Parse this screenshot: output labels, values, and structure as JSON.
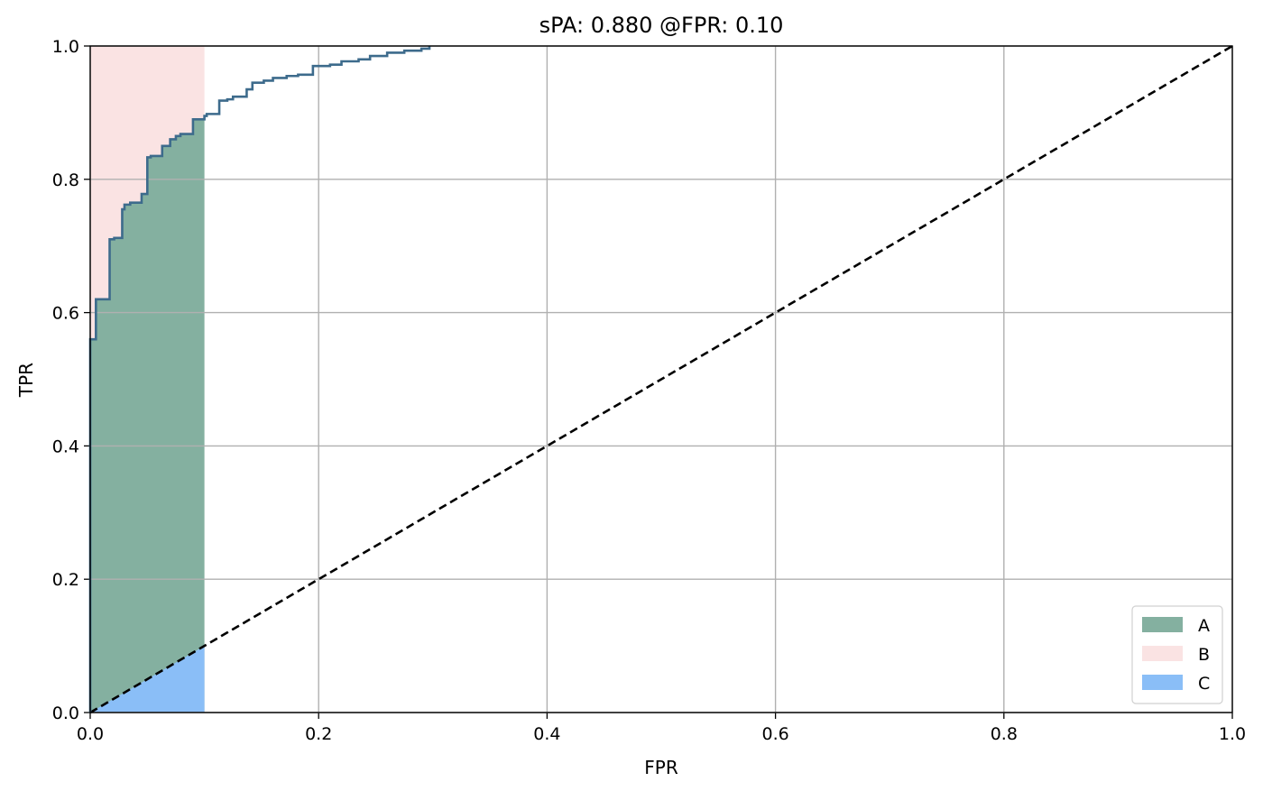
{
  "chart_data": {
    "type": "line",
    "title": "sPA: 0.880 @FPR: 0.10",
    "xlabel": "FPR",
    "ylabel": "TPR",
    "xlim": [
      0.0,
      1.0
    ],
    "ylim": [
      0.0,
      1.0
    ],
    "xticks": [
      "0.0",
      "0.2",
      "0.4",
      "0.6",
      "0.8",
      "1.0"
    ],
    "yticks": [
      "0.0",
      "0.2",
      "0.4",
      "0.6",
      "0.8",
      "1.0"
    ],
    "grid": true,
    "legend_position": "lower-right",
    "roc_curve": {
      "color": "#3d6b8c",
      "x": [
        0.0,
        0.0,
        0.005,
        0.005,
        0.017,
        0.017,
        0.021,
        0.021,
        0.028,
        0.028,
        0.03,
        0.03,
        0.035,
        0.035,
        0.045,
        0.045,
        0.05,
        0.05,
        0.053,
        0.053,
        0.063,
        0.063,
        0.07,
        0.07,
        0.075,
        0.075,
        0.079,
        0.079,
        0.09,
        0.09,
        0.1,
        0.1,
        0.102,
        0.102,
        0.113,
        0.113,
        0.12,
        0.12,
        0.125,
        0.125,
        0.137,
        0.137,
        0.142,
        0.142,
        0.152,
        0.152,
        0.16,
        0.16,
        0.172,
        0.172,
        0.182,
        0.182,
        0.195,
        0.195,
        0.21,
        0.21,
        0.22,
        0.22,
        0.235,
        0.235,
        0.245,
        0.245,
        0.26,
        0.26,
        0.275,
        0.275,
        0.29,
        0.29,
        0.297,
        0.297
      ],
      "y": [
        0.0,
        0.56,
        0.56,
        0.62,
        0.62,
        0.71,
        0.71,
        0.712,
        0.712,
        0.755,
        0.755,
        0.762,
        0.762,
        0.765,
        0.765,
        0.778,
        0.778,
        0.833,
        0.833,
        0.835,
        0.835,
        0.85,
        0.85,
        0.86,
        0.86,
        0.865,
        0.865,
        0.868,
        0.868,
        0.89,
        0.89,
        0.895,
        0.895,
        0.898,
        0.898,
        0.918,
        0.918,
        0.92,
        0.92,
        0.924,
        0.924,
        0.935,
        0.935,
        0.945,
        0.945,
        0.948,
        0.948,
        0.952,
        0.952,
        0.955,
        0.955,
        0.957,
        0.957,
        0.97,
        0.97,
        0.972,
        0.972,
        0.977,
        0.977,
        0.98,
        0.98,
        0.985,
        0.985,
        0.99,
        0.99,
        0.993,
        0.993,
        0.996,
        0.996,
        1.0
      ]
    },
    "diagonal": {
      "x": [
        0.0,
        1.0
      ],
      "y": [
        0.0,
        1.0
      ],
      "style": "dashed",
      "color": "#000000"
    },
    "regions": [
      {
        "name": "A",
        "color": "#84b0a0"
      },
      {
        "name": "B",
        "color": "#fae3e3"
      },
      {
        "name": "C",
        "color": "#8abef7"
      }
    ],
    "fpr_limit": 0.1
  }
}
